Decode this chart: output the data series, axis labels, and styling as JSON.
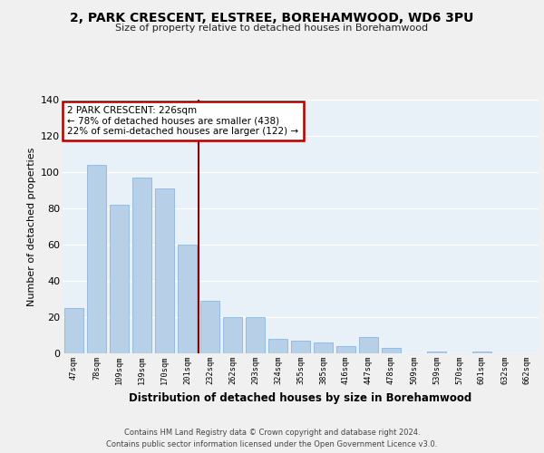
{
  "title": "2, PARK CRESCENT, ELSTREE, BOREHAMWOOD, WD6 3PU",
  "subtitle": "Size of property relative to detached houses in Borehamwood",
  "xlabel": "Distribution of detached houses by size in Borehamwood",
  "ylabel": "Number of detached properties",
  "categories": [
    "47sqm",
    "78sqm",
    "109sqm",
    "139sqm",
    "170sqm",
    "201sqm",
    "232sqm",
    "262sqm",
    "293sqm",
    "324sqm",
    "355sqm",
    "385sqm",
    "416sqm",
    "447sqm",
    "478sqm",
    "509sqm",
    "539sqm",
    "570sqm",
    "601sqm",
    "632sqm",
    "662sqm"
  ],
  "values": [
    25,
    104,
    82,
    97,
    91,
    60,
    29,
    20,
    20,
    8,
    7,
    6,
    4,
    9,
    3,
    0,
    1,
    0,
    1,
    0,
    0
  ],
  "bar_color": "#b8cfe8",
  "bar_edge_color": "#90b4d8",
  "bg_color": "#e8f0f8",
  "grid_color": "#ffffff",
  "property_line_color": "#880000",
  "annotation_text": "2 PARK CRESCENT: 226sqm\n← 78% of detached houses are smaller (438)\n22% of semi-detached houses are larger (122) →",
  "annotation_box_color": "#aa0000",
  "fig_bg_color": "#f0f0f0",
  "footer": "Contains HM Land Registry data © Crown copyright and database right 2024.\nContains public sector information licensed under the Open Government Licence v3.0.",
  "ylim": [
    0,
    140
  ],
  "yticks": [
    0,
    20,
    40,
    60,
    80,
    100,
    120,
    140
  ]
}
